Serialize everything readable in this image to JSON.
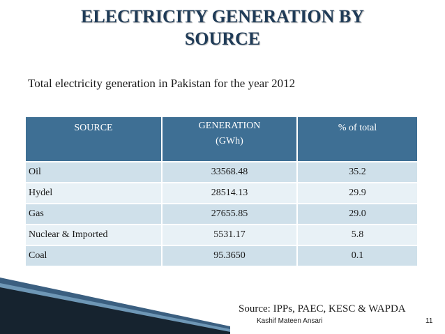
{
  "slide": {
    "title_line1": "ELECTRICITY GENERATION BY",
    "title_line2": "SOURCE",
    "subtitle": "Total electricity generation in Pakistan for the year 2012"
  },
  "table": {
    "headers": {
      "source": "SOURCE",
      "generation_line1": "GENERATION",
      "generation_line2": "(GWh)",
      "percent": "% of  total"
    },
    "rows": [
      {
        "source": "Oil",
        "generation": "33568.48",
        "percent": "35.2"
      },
      {
        "source": "Hydel",
        "generation": "28514.13",
        "percent": "29.9"
      },
      {
        "source": "Gas",
        "generation": "27655.85",
        "percent": "29.0"
      },
      {
        "source": "Nuclear & Imported",
        "generation": "5531.17",
        "percent": "5.8"
      },
      {
        "source": "Coal",
        "generation": "95.3650",
        "percent": "0.1"
      }
    ]
  },
  "footer": {
    "source_note": "Source: IPPs, PAEC, KESC & WAPDA",
    "author": "Kashif Mateen Ansari",
    "page_number": "11"
  },
  "colors": {
    "title": "#1f3b57",
    "header_bg": "#3e6f94",
    "row_dark": "#cfe0ea",
    "row_light": "#e8f1f6"
  }
}
